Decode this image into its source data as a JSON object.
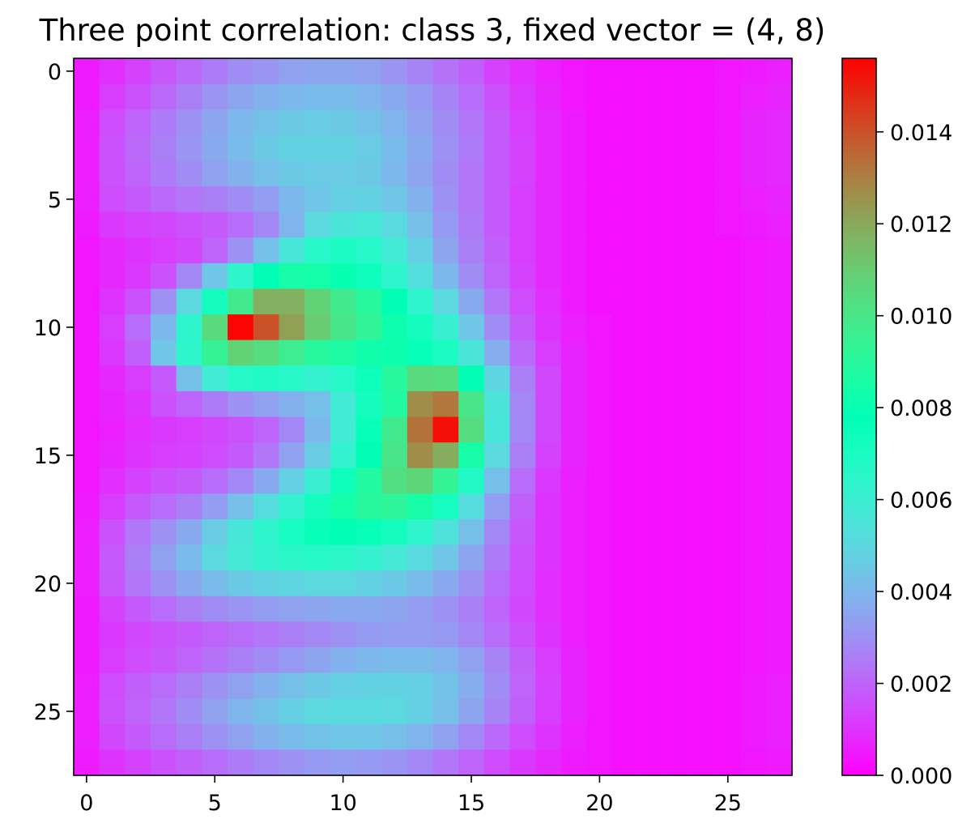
{
  "chart_data": {
    "type": "heatmap",
    "title": "Three point correlation: class 3, fixed vector = (4, 8)",
    "xlabel": "",
    "ylabel": "",
    "colormap": "rainbow",
    "xlim": [
      -0.5,
      27.5
    ],
    "ylim": [
      27.5,
      -0.5
    ],
    "x_ticks": [
      0,
      5,
      10,
      15,
      20,
      25
    ],
    "x_tick_labels": [
      "0",
      "5",
      "10",
      "15",
      "20",
      "25"
    ],
    "y_ticks": [
      0,
      5,
      10,
      15,
      20,
      25
    ],
    "y_tick_labels": [
      "0",
      "5",
      "10",
      "15",
      "20",
      "25"
    ],
    "colorbar": {
      "min": 0.0,
      "max": 0.0156,
      "ticks": [
        0.0,
        0.002,
        0.004,
        0.006,
        0.008,
        0.01,
        0.012,
        0.014
      ],
      "tick_labels": [
        "0.000",
        "0.002",
        "0.004",
        "0.006",
        "0.008",
        "0.010",
        "0.012",
        "0.014"
      ]
    },
    "grid": false,
    "values": [
      [
        0.0005,
        0.0009,
        0.0013,
        0.0017,
        0.0021,
        0.0025,
        0.0029,
        0.0031,
        0.0034,
        0.0035,
        0.0035,
        0.0034,
        0.0031,
        0.0027,
        0.0023,
        0.0019,
        0.0013,
        0.0009,
        0.0006,
        0.0004,
        0.0003,
        0.0003,
        0.0003,
        0.0003,
        0.0003,
        0.0004,
        0.0005,
        0.0006
      ],
      [
        0.0005,
        0.0012,
        0.0016,
        0.0021,
        0.0026,
        0.0031,
        0.0035,
        0.0038,
        0.004,
        0.0041,
        0.0041,
        0.0039,
        0.0036,
        0.0032,
        0.0027,
        0.0022,
        0.0016,
        0.0011,
        0.0007,
        0.0004,
        0.0003,
        0.0003,
        0.0003,
        0.0003,
        0.0003,
        0.0004,
        0.0006,
        0.0007
      ],
      [
        0.0006,
        0.0015,
        0.002,
        0.0025,
        0.003,
        0.0035,
        0.004,
        0.0043,
        0.0045,
        0.0046,
        0.0045,
        0.0043,
        0.0039,
        0.0034,
        0.0029,
        0.0024,
        0.0018,
        0.0012,
        0.0008,
        0.0005,
        0.0003,
        0.0003,
        0.0003,
        0.0003,
        0.0003,
        0.0004,
        0.0007,
        0.0008
      ],
      [
        0.0006,
        0.0016,
        0.0021,
        0.0026,
        0.0031,
        0.0036,
        0.0041,
        0.0045,
        0.0048,
        0.0048,
        0.0048,
        0.0046,
        0.0041,
        0.0036,
        0.003,
        0.0025,
        0.0018,
        0.0013,
        0.0008,
        0.0005,
        0.0003,
        0.0003,
        0.0003,
        0.0003,
        0.0003,
        0.0004,
        0.0007,
        0.0008
      ],
      [
        0.0006,
        0.0016,
        0.002,
        0.0025,
        0.0029,
        0.0034,
        0.0038,
        0.0042,
        0.0045,
        0.0046,
        0.0046,
        0.0045,
        0.004,
        0.0035,
        0.0029,
        0.0024,
        0.0018,
        0.0013,
        0.0008,
        0.0005,
        0.0003,
        0.0003,
        0.0003,
        0.0003,
        0.0003,
        0.0004,
        0.0007,
        0.0008
      ],
      [
        0.0006,
        0.0015,
        0.0018,
        0.0021,
        0.0024,
        0.0026,
        0.0029,
        0.0033,
        0.004,
        0.0044,
        0.0047,
        0.0048,
        0.0044,
        0.0038,
        0.003,
        0.0024,
        0.0018,
        0.0012,
        0.0008,
        0.0005,
        0.0003,
        0.0003,
        0.0003,
        0.0003,
        0.0003,
        0.0004,
        0.0006,
        0.0007
      ],
      [
        0.0005,
        0.0011,
        0.0013,
        0.0014,
        0.0016,
        0.0018,
        0.0022,
        0.0028,
        0.0039,
        0.005,
        0.0055,
        0.0057,
        0.0051,
        0.0042,
        0.0032,
        0.0025,
        0.0018,
        0.0012,
        0.0008,
        0.0005,
        0.0003,
        0.0003,
        0.0003,
        0.0003,
        0.0003,
        0.0004,
        0.0005,
        0.0006
      ],
      [
        0.0004,
        0.0008,
        0.001,
        0.0012,
        0.0014,
        0.002,
        0.003,
        0.0042,
        0.0056,
        0.0066,
        0.0069,
        0.0066,
        0.0058,
        0.0047,
        0.0035,
        0.0026,
        0.0019,
        0.0012,
        0.0008,
        0.0005,
        0.0003,
        0.0003,
        0.0003,
        0.0003,
        0.0003,
        0.0003,
        0.0004,
        0.0005
      ],
      [
        0.0004,
        0.0008,
        0.0011,
        0.0016,
        0.0028,
        0.0044,
        0.0064,
        0.0078,
        0.0085,
        0.0084,
        0.008,
        0.0073,
        0.0064,
        0.0053,
        0.004,
        0.0029,
        0.002,
        0.0013,
        0.0008,
        0.0005,
        0.0003,
        0.0003,
        0.0003,
        0.0003,
        0.0003,
        0.0003,
        0.0004,
        0.0005
      ],
      [
        0.0004,
        0.001,
        0.0016,
        0.003,
        0.005,
        0.0072,
        0.0098,
        0.0118,
        0.0118,
        0.0108,
        0.0098,
        0.009,
        0.0078,
        0.0064,
        0.005,
        0.0036,
        0.0024,
        0.0015,
        0.0009,
        0.0005,
        0.0003,
        0.0003,
        0.0003,
        0.0003,
        0.0003,
        0.0003,
        0.0004,
        0.0005
      ],
      [
        0.0004,
        0.0012,
        0.0022,
        0.004,
        0.0064,
        0.0105,
        0.0155,
        0.014,
        0.0122,
        0.011,
        0.01,
        0.0093,
        0.0082,
        0.0072,
        0.0061,
        0.0044,
        0.0029,
        0.0018,
        0.001,
        0.0006,
        0.0004,
        0.0003,
        0.0003,
        0.0003,
        0.0003,
        0.0003,
        0.0004,
        0.0005
      ],
      [
        0.0004,
        0.0011,
        0.0019,
        0.0044,
        0.0064,
        0.0094,
        0.0108,
        0.0104,
        0.0097,
        0.009,
        0.0087,
        0.0083,
        0.0082,
        0.0076,
        0.007,
        0.0055,
        0.0037,
        0.0021,
        0.0012,
        0.0007,
        0.0004,
        0.0003,
        0.0003,
        0.0003,
        0.0003,
        0.0003,
        0.0004,
        0.0005
      ],
      [
        0.0004,
        0.0008,
        0.0012,
        0.0018,
        0.0042,
        0.0058,
        0.0066,
        0.0068,
        0.0066,
        0.0062,
        0.0066,
        0.0074,
        0.009,
        0.0105,
        0.0104,
        0.0078,
        0.0049,
        0.0026,
        0.0014,
        0.0007,
        0.0004,
        0.0003,
        0.0003,
        0.0003,
        0.0003,
        0.0003,
        0.0004,
        0.0005
      ],
      [
        0.0004,
        0.0007,
        0.001,
        0.0016,
        0.002,
        0.0025,
        0.003,
        0.0034,
        0.0038,
        0.0042,
        0.0058,
        0.0072,
        0.0088,
        0.0127,
        0.0132,
        0.01,
        0.0055,
        0.0028,
        0.0014,
        0.0007,
        0.0004,
        0.0003,
        0.0003,
        0.0003,
        0.0003,
        0.0003,
        0.0004,
        0.0005
      ],
      [
        0.0004,
        0.0006,
        0.0009,
        0.0011,
        0.0012,
        0.0014,
        0.0016,
        0.002,
        0.0028,
        0.004,
        0.0058,
        0.0076,
        0.0098,
        0.0133,
        0.0153,
        0.0104,
        0.0056,
        0.0028,
        0.0014,
        0.0007,
        0.0004,
        0.0003,
        0.0003,
        0.0003,
        0.0003,
        0.0003,
        0.0004,
        0.0005
      ],
      [
        0.0004,
        0.0007,
        0.001,
        0.0012,
        0.0013,
        0.0015,
        0.0018,
        0.0024,
        0.0034,
        0.0046,
        0.0062,
        0.0078,
        0.01,
        0.0127,
        0.0119,
        0.0085,
        0.005,
        0.0026,
        0.0013,
        0.0007,
        0.0004,
        0.0003,
        0.0003,
        0.0003,
        0.0003,
        0.0003,
        0.0004,
        0.0005
      ],
      [
        0.0004,
        0.0009,
        0.0013,
        0.0016,
        0.0018,
        0.0022,
        0.0028,
        0.0036,
        0.0047,
        0.006,
        0.0074,
        0.0088,
        0.0103,
        0.0107,
        0.0094,
        0.0068,
        0.0042,
        0.0022,
        0.0011,
        0.0006,
        0.0004,
        0.0003,
        0.0003,
        0.0003,
        0.0003,
        0.0003,
        0.0004,
        0.0005
      ],
      [
        0.0005,
        0.0012,
        0.0018,
        0.0022,
        0.0026,
        0.0033,
        0.0042,
        0.0052,
        0.0062,
        0.0072,
        0.0084,
        0.009,
        0.0092,
        0.0085,
        0.0071,
        0.0052,
        0.0033,
        0.0019,
        0.001,
        0.0006,
        0.0004,
        0.0003,
        0.0003,
        0.0003,
        0.0003,
        0.0003,
        0.0004,
        0.0005
      ],
      [
        0.0006,
        0.0016,
        0.0024,
        0.003,
        0.0036,
        0.0046,
        0.0056,
        0.0064,
        0.0071,
        0.0076,
        0.0078,
        0.0076,
        0.0072,
        0.0064,
        0.0054,
        0.0042,
        0.0028,
        0.0017,
        0.001,
        0.0006,
        0.0004,
        0.0003,
        0.0003,
        0.0003,
        0.0003,
        0.0003,
        0.0004,
        0.0005
      ],
      [
        0.0006,
        0.0018,
        0.0026,
        0.0034,
        0.0041,
        0.005,
        0.0057,
        0.0062,
        0.0065,
        0.0066,
        0.0065,
        0.0062,
        0.0057,
        0.0051,
        0.0044,
        0.0035,
        0.0025,
        0.0016,
        0.001,
        0.0006,
        0.0004,
        0.0003,
        0.0003,
        0.0003,
        0.0003,
        0.0003,
        0.0004,
        0.0005
      ],
      [
        0.0006,
        0.0017,
        0.0024,
        0.003,
        0.0036,
        0.0041,
        0.0045,
        0.0048,
        0.0049,
        0.005,
        0.005,
        0.0048,
        0.0045,
        0.0041,
        0.0036,
        0.003,
        0.0022,
        0.0015,
        0.0009,
        0.0006,
        0.0004,
        0.0003,
        0.0003,
        0.0003,
        0.0003,
        0.0003,
        0.0004,
        0.0005
      ],
      [
        0.0005,
        0.0013,
        0.0018,
        0.0022,
        0.0026,
        0.0029,
        0.0031,
        0.0033,
        0.0034,
        0.0035,
        0.0036,
        0.0036,
        0.0035,
        0.0033,
        0.003,
        0.0026,
        0.002,
        0.0014,
        0.0009,
        0.0006,
        0.0004,
        0.0003,
        0.0003,
        0.0003,
        0.0003,
        0.0003,
        0.0004,
        0.0005
      ],
      [
        0.0005,
        0.0011,
        0.0014,
        0.0016,
        0.0018,
        0.002,
        0.0022,
        0.0024,
        0.0026,
        0.0028,
        0.003,
        0.0032,
        0.0033,
        0.0033,
        0.0032,
        0.0028,
        0.0022,
        0.0016,
        0.001,
        0.0006,
        0.0004,
        0.0003,
        0.0003,
        0.0003,
        0.0003,
        0.0003,
        0.0004,
        0.0005
      ],
      [
        0.0005,
        0.0012,
        0.0015,
        0.0017,
        0.002,
        0.0023,
        0.0026,
        0.0029,
        0.0032,
        0.0035,
        0.0038,
        0.004,
        0.0041,
        0.0041,
        0.0039,
        0.0034,
        0.0027,
        0.0019,
        0.0012,
        0.0007,
        0.0004,
        0.0003,
        0.0003,
        0.0003,
        0.0003,
        0.0003,
        0.0004,
        0.0005
      ],
      [
        0.0006,
        0.0015,
        0.0019,
        0.0022,
        0.0026,
        0.003,
        0.0034,
        0.0038,
        0.0042,
        0.0045,
        0.0047,
        0.0048,
        0.0048,
        0.0047,
        0.0043,
        0.0037,
        0.0029,
        0.002,
        0.0013,
        0.0007,
        0.0004,
        0.0003,
        0.0003,
        0.0003,
        0.0003,
        0.0003,
        0.0005,
        0.0006
      ],
      [
        0.0006,
        0.0016,
        0.002,
        0.0024,
        0.0029,
        0.0034,
        0.0039,
        0.0043,
        0.0047,
        0.005,
        0.0051,
        0.0051,
        0.005,
        0.0047,
        0.0042,
        0.0035,
        0.0027,
        0.0019,
        0.0012,
        0.0007,
        0.0004,
        0.0003,
        0.0003,
        0.0003,
        0.0003,
        0.0003,
        0.0005,
        0.0006
      ],
      [
        0.0006,
        0.0014,
        0.0018,
        0.0022,
        0.0026,
        0.003,
        0.0034,
        0.0038,
        0.0041,
        0.0043,
        0.0044,
        0.0044,
        0.0042,
        0.0039,
        0.0034,
        0.0028,
        0.0021,
        0.0015,
        0.001,
        0.0006,
        0.0004,
        0.0003,
        0.0003,
        0.0003,
        0.0003,
        0.0003,
        0.0005,
        0.0006
      ],
      [
        0.0005,
        0.001,
        0.0013,
        0.0016,
        0.0019,
        0.0022,
        0.0025,
        0.0028,
        0.003,
        0.0032,
        0.0033,
        0.0032,
        0.0031,
        0.0028,
        0.0024,
        0.002,
        0.0015,
        0.0011,
        0.0008,
        0.0005,
        0.0004,
        0.0003,
        0.0003,
        0.0003,
        0.0003,
        0.0003,
        0.0004,
        0.0005
      ]
    ]
  }
}
